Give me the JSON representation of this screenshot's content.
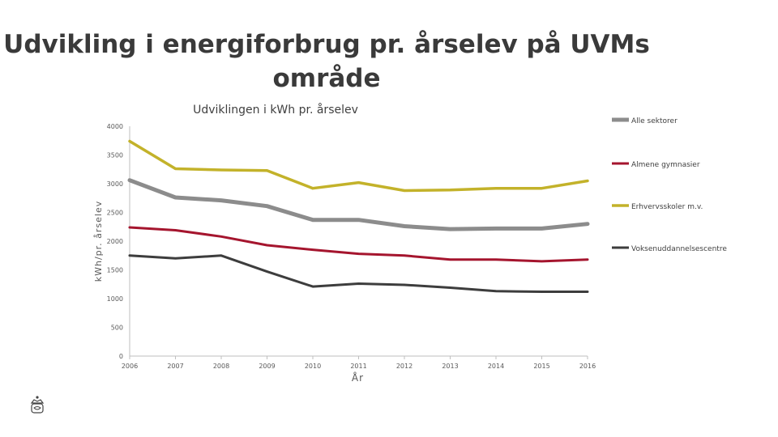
{
  "slide": {
    "title_line1": "Udvikling i energiforbrug pr. årselev på UVMs",
    "title_line2": "område"
  },
  "chart_data": {
    "type": "line",
    "title": "Udviklingen i kWh pr. årselev",
    "xlabel": "År",
    "ylabel": "kWh/pr. årselev",
    "categories": [
      "2006",
      "2007",
      "2008",
      "2009",
      "2010",
      "2011",
      "2012",
      "2013",
      "2014",
      "2015",
      "2016"
    ],
    "ylim": [
      0,
      4000
    ],
    "yticks": [
      0,
      500,
      1000,
      1500,
      2000,
      2500,
      3000,
      3500,
      4000
    ],
    "grid": false,
    "legend_position": "right",
    "series": [
      {
        "name": "Alle sektorer",
        "color": "#8c8c8c",
        "values": [
          3060,
          2760,
          2710,
          2610,
          2370,
          2370,
          2260,
          2210,
          2220,
          2220,
          2300
        ]
      },
      {
        "name": "Almene gymnasier",
        "color": "#a5152e",
        "values": [
          2240,
          2190,
          2080,
          1930,
          1850,
          1780,
          1750,
          1680,
          1680,
          1650,
          1680
        ]
      },
      {
        "name": "Erhvervsskoler m.v.",
        "color": "#c3b22a",
        "values": [
          3740,
          3260,
          3240,
          3230,
          2920,
          3020,
          2880,
          2890,
          2920,
          2920,
          3050
        ]
      },
      {
        "name": "Voksenuddannelsescentre",
        "color": "#3d3d3d",
        "values": [
          1750,
          1700,
          1750,
          1470,
          1210,
          1260,
          1240,
          1190,
          1130,
          1120,
          1120
        ]
      }
    ]
  }
}
